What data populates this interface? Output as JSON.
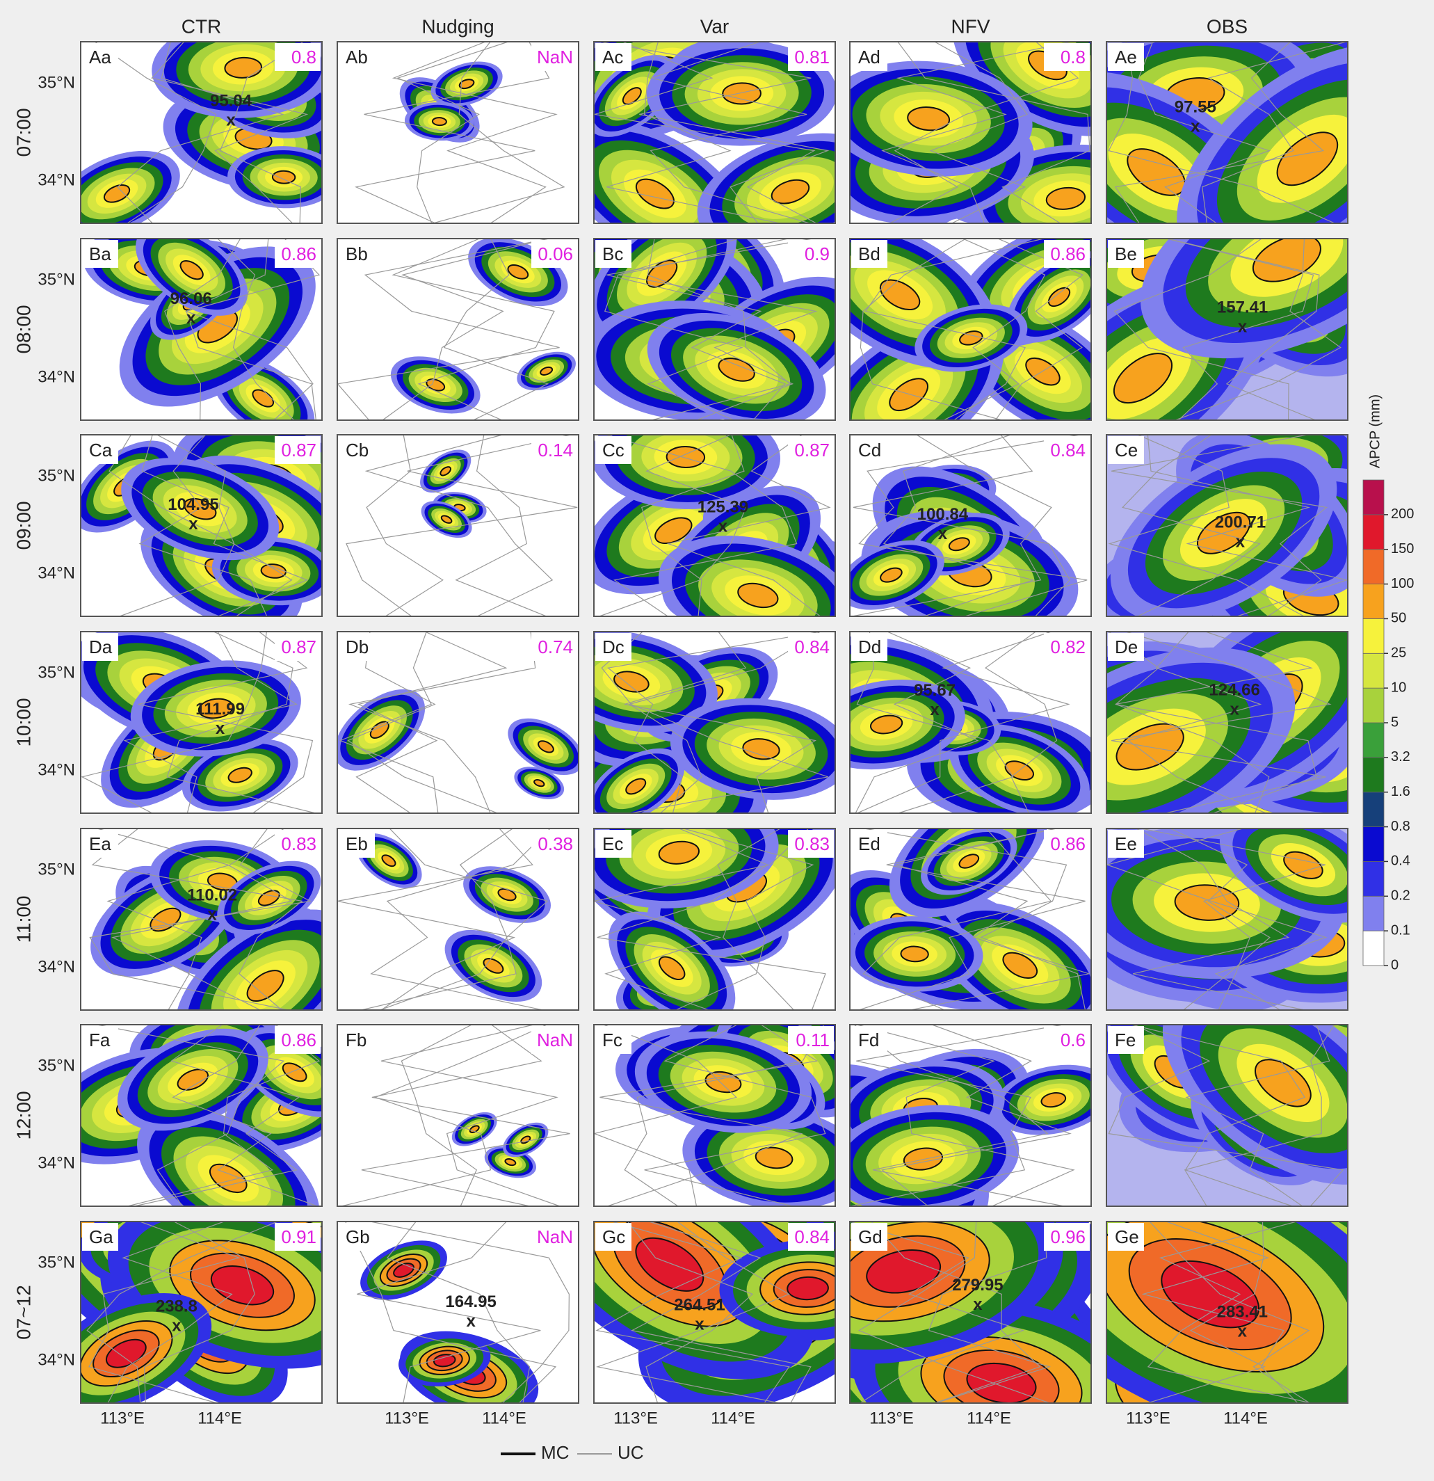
{
  "columns": [
    "CTR",
    "Nudging",
    "Var",
    "NFV",
    "OBS"
  ],
  "rows": [
    {
      "time": "07:00",
      "panels": [
        {
          "label": "Aa",
          "score": 0.8,
          "max": 95.04
        },
        {
          "label": "Ab",
          "score": "NaN"
        },
        {
          "label": "Ac",
          "score": 0.81
        },
        {
          "label": "Ad",
          "score": 0.8
        },
        {
          "label": "Ae",
          "max": 97.55
        }
      ]
    },
    {
      "time": "08:00",
      "panels": [
        {
          "label": "Ba",
          "score": 0.86,
          "max": 96.06
        },
        {
          "label": "Bb",
          "score": 0.06
        },
        {
          "label": "Bc",
          "score": 0.9
        },
        {
          "label": "Bd",
          "score": 0.86
        },
        {
          "label": "Be",
          "max": 157.41
        }
      ]
    },
    {
      "time": "09:00",
      "panels": [
        {
          "label": "Ca",
          "score": 0.87,
          "max": 104.95
        },
        {
          "label": "Cb",
          "score": 0.14
        },
        {
          "label": "Cc",
          "score": 0.87,
          "max": 125.39
        },
        {
          "label": "Cd",
          "score": 0.84,
          "max": 100.84
        },
        {
          "label": "Ce",
          "max": 200.71
        }
      ]
    },
    {
      "time": "10:00",
      "panels": [
        {
          "label": "Da",
          "score": 0.87,
          "max": 111.99
        },
        {
          "label": "Db",
          "score": 0.74
        },
        {
          "label": "Dc",
          "score": 0.84
        },
        {
          "label": "Dd",
          "score": 0.82,
          "max": 95.67
        },
        {
          "label": "De",
          "max": 124.66
        }
      ]
    },
    {
      "time": "11:00",
      "panels": [
        {
          "label": "Ea",
          "score": 0.83,
          "max": 110.02
        },
        {
          "label": "Eb",
          "score": 0.38
        },
        {
          "label": "Ec",
          "score": 0.83
        },
        {
          "label": "Ed",
          "score": 0.86
        },
        {
          "label": "Ee"
        }
      ]
    },
    {
      "time": "12:00",
      "panels": [
        {
          "label": "Fa",
          "score": 0.86
        },
        {
          "label": "Fb",
          "score": "NaN"
        },
        {
          "label": "Fc",
          "score": 0.11
        },
        {
          "label": "Fd",
          "score": 0.6
        },
        {
          "label": "Fe"
        }
      ]
    },
    {
      "time": "07~12",
      "panels": [
        {
          "label": "Ga",
          "score": 0.91,
          "max": 238.8
        },
        {
          "label": "Gb",
          "score": "NaN",
          "max": 164.95
        },
        {
          "label": "Gc",
          "score": 0.84,
          "max": 264.51
        },
        {
          "label": "Gd",
          "score": 0.96,
          "max": 279.95
        },
        {
          "label": "Ge",
          "max": 283.41
        }
      ]
    }
  ],
  "axes": {
    "lat": [
      "35°N",
      "34°N"
    ],
    "lon": [
      "113°E",
      "114°E"
    ]
  },
  "colorbar": {
    "label": "APCP (mm)",
    "ticks": [
      0,
      0.1,
      0.2,
      0.4,
      0.8,
      1.6,
      3.2,
      5,
      10,
      25,
      50,
      100,
      150,
      200
    ]
  },
  "legend": [
    "MC",
    "UC"
  ]
}
